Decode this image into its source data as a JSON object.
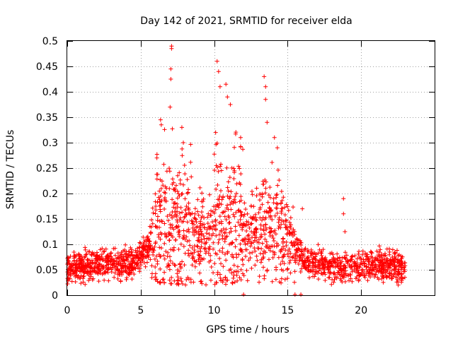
{
  "chart_data": {
    "type": "scatter",
    "title": "Day 142 of 2021, SRMTID for receiver elda",
    "xlabel": "GPS time / hours",
    "ylabel": "SRMTID / TECUs",
    "xlim": [
      0,
      25
    ],
    "ylim": [
      0,
      0.5
    ],
    "x_ticks": [
      0,
      5,
      10,
      15,
      20
    ],
    "x_tick_labels": [
      "0",
      "5",
      "10",
      "15",
      "20"
    ],
    "y_ticks": [
      0,
      0.05,
      0.1,
      0.15,
      0.2,
      0.25,
      0.3,
      0.35,
      0.4,
      0.45,
      0.5
    ],
    "y_tick_labels": [
      "0",
      "0.05",
      "0.1",
      "0.15",
      "0.2",
      "0.25",
      "0.3",
      "0.35",
      "0.4",
      "0.45",
      "0.5"
    ],
    "grid": true,
    "marker": "plus",
    "marker_color": "#ff0000",
    "baseline_level_by_hour": [
      {
        "x": 0,
        "y": 0.05
      },
      {
        "x": 1,
        "y": 0.055
      },
      {
        "x": 2,
        "y": 0.06
      },
      {
        "x": 3,
        "y": 0.065
      },
      {
        "x": 4,
        "y": 0.06
      },
      {
        "x": 5,
        "y": 0.075
      },
      {
        "x": 6,
        "y": 0.12
      },
      {
        "x": 7,
        "y": 0.14
      },
      {
        "x": 8,
        "y": 0.14
      },
      {
        "x": 9,
        "y": 0.11
      },
      {
        "x": 10,
        "y": 0.13
      },
      {
        "x": 11,
        "y": 0.14
      },
      {
        "x": 12,
        "y": 0.12
      },
      {
        "x": 13,
        "y": 0.13
      },
      {
        "x": 14,
        "y": 0.15
      },
      {
        "x": 15,
        "y": 0.11
      },
      {
        "x": 16,
        "y": 0.07
      },
      {
        "x": 17,
        "y": 0.06
      },
      {
        "x": 18,
        "y": 0.055
      },
      {
        "x": 19,
        "y": 0.055
      },
      {
        "x": 20,
        "y": 0.06
      },
      {
        "x": 21,
        "y": 0.06
      },
      {
        "x": 22,
        "y": 0.055
      },
      {
        "x": 23,
        "y": 0.05
      }
    ],
    "notable_points": [
      {
        "x": 7.1,
        "y": 0.49
      },
      {
        "x": 7.1,
        "y": 0.485
      },
      {
        "x": 7.05,
        "y": 0.445
      },
      {
        "x": 7.05,
        "y": 0.425
      },
      {
        "x": 7.0,
        "y": 0.37
      },
      {
        "x": 6.35,
        "y": 0.345
      },
      {
        "x": 6.4,
        "y": 0.335
      },
      {
        "x": 6.1,
        "y": 0.27
      },
      {
        "x": 7.8,
        "y": 0.33
      },
      {
        "x": 7.9,
        "y": 0.3
      },
      {
        "x": 10.2,
        "y": 0.46
      },
      {
        "x": 10.3,
        "y": 0.44
      },
      {
        "x": 10.4,
        "y": 0.41
      },
      {
        "x": 10.8,
        "y": 0.415
      },
      {
        "x": 10.9,
        "y": 0.39
      },
      {
        "x": 11.1,
        "y": 0.375
      },
      {
        "x": 10.1,
        "y": 0.32
      },
      {
        "x": 11.8,
        "y": 0.31
      },
      {
        "x": 13.4,
        "y": 0.43
      },
      {
        "x": 13.5,
        "y": 0.41
      },
      {
        "x": 13.5,
        "y": 0.385
      },
      {
        "x": 13.6,
        "y": 0.34
      },
      {
        "x": 14.1,
        "y": 0.31
      },
      {
        "x": 14.3,
        "y": 0.29
      },
      {
        "x": 18.8,
        "y": 0.19
      },
      {
        "x": 18.8,
        "y": 0.16
      },
      {
        "x": 18.9,
        "y": 0.125
      },
      {
        "x": 16.0,
        "y": 0.17
      },
      {
        "x": 12.0,
        "y": 0.0
      },
      {
        "x": 15.5,
        "y": 0.0
      },
      {
        "x": 15.9,
        "y": 0.0
      }
    ]
  }
}
